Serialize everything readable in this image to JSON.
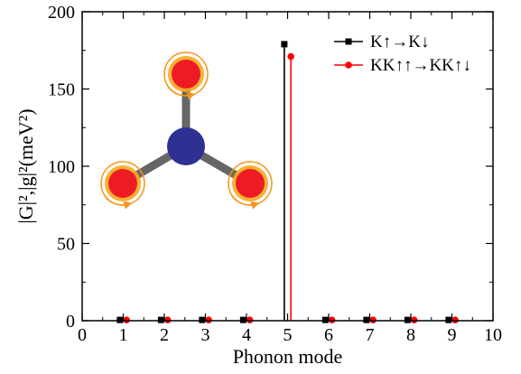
{
  "chart_data": {
    "type": "bar",
    "xlabel": "Phonon mode",
    "ylabel": "|G|²,|g|²(meV²)",
    "xlim": [
      0,
      10
    ],
    "ylim": [
      0,
      200
    ],
    "x_ticks": [
      0,
      1,
      2,
      3,
      4,
      5,
      6,
      7,
      8,
      9,
      10
    ],
    "y_ticks": [
      0,
      50,
      100,
      150,
      200
    ],
    "legend_position": "top-right",
    "grid": false,
    "series": [
      {
        "name": "K↑→K↓",
        "color": "#000000",
        "marker": "square",
        "x": [
          1,
          2,
          3,
          4,
          5,
          6,
          7,
          8,
          9
        ],
        "values": [
          0.5,
          0.5,
          0.5,
          0.5,
          179,
          0.5,
          0.5,
          0.5,
          0.5
        ]
      },
      {
        "name": "KK↑↑→KK↑↓",
        "color": "#ff0000",
        "marker": "circle",
        "x": [
          1,
          2,
          3,
          4,
          5,
          6,
          7,
          8,
          9
        ],
        "values": [
          0.5,
          0.5,
          0.5,
          0.5,
          171,
          0.5,
          0.5,
          0.5,
          0.5
        ]
      }
    ],
    "inset": {
      "center_color": "#2e3192",
      "atom_color": "#ed1c24",
      "ring_color": "#f7941d",
      "bond_color": "#666666"
    }
  }
}
